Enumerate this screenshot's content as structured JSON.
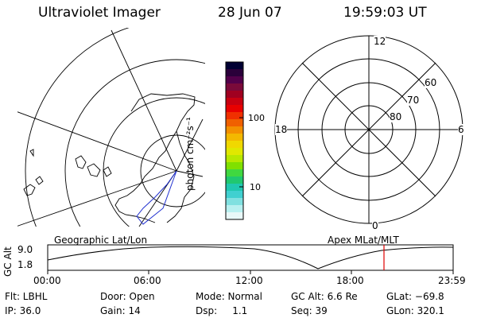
{
  "header": {
    "instrument": "Ultraviolet Imager",
    "date": "28 Jun 07",
    "time": "19:59:03 UT"
  },
  "colorbar": {
    "unit_label": "photon cm⁻²s⁻¹",
    "tick_100": "100",
    "tick_10": "10",
    "colors_top_to_bottom": [
      "#000033",
      "#2a003a",
      "#52004a",
      "#7a0a3a",
      "#a00020",
      "#c80010",
      "#e80000",
      "#f03000",
      "#f06000",
      "#f39000",
      "#f3b800",
      "#f0d800",
      "#e0e800",
      "#b8e800",
      "#80e000",
      "#40d840",
      "#20c870",
      "#20c8b0",
      "#40d0d0",
      "#80e0e0",
      "#b8f0f0",
      "#e8f8f8"
    ]
  },
  "polar_plot": {
    "label_12": "12",
    "label_18": "18",
    "label_6": "6",
    "label_0": "0",
    "label_60": "60",
    "label_70": "70",
    "label_80": "80"
  },
  "timeline": {
    "left_label": "Geographic Lat/Lon",
    "right_label": "Apex MLat/MLT",
    "yaxis_title": "GC Alt",
    "y_max": "9.0",
    "y_min": "1.8",
    "x_ticks": [
      "00:00",
      "06:00",
      "12:00",
      "18:00",
      "23:59"
    ],
    "marker_color": "#e00000"
  },
  "status": {
    "flt": "Flt: LBHL",
    "door": "Door: Open",
    "mode": "Mode: Normal",
    "gc_alt": "GC Alt: 6.6 Re",
    "glat": "GLat: −69.8",
    "ip": "IP: 36.0",
    "gain": "Gain: 14",
    "dsp": "Dsp:     1.1",
    "seq": "Seq: 39",
    "glon": "GLon: 320.1"
  }
}
